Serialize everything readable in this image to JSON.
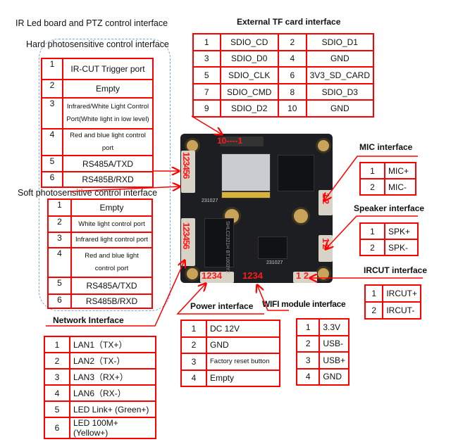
{
  "titles": {
    "ir_led": "IR Led board and PTZ control interface",
    "hard": "Hard photosensitive control interface",
    "soft": "Soft photosensitive control interface",
    "network": "Network Interface",
    "tf": "External TF card interface",
    "mic": "MIC interface",
    "speaker": "Speaker interface",
    "ircut": "IRCUT interface",
    "power": "Power interface",
    "wifi": "WIFI module interface"
  },
  "tables": {
    "hard": [
      [
        "1",
        "IR-CUT Trigger port"
      ],
      [
        "2",
        "Empty"
      ],
      [
        "3",
        "Infrared/White Light Control Port(White light in low level)"
      ],
      [
        "4",
        "Red and blue light control port"
      ],
      [
        "5",
        "RS485A/TXD"
      ],
      [
        "6",
        "RS485B/RXD"
      ]
    ],
    "soft": [
      [
        "1",
        "Empty"
      ],
      [
        "2",
        "White light control port"
      ],
      [
        "3",
        "Infrared light control port"
      ],
      [
        "4",
        "Red and blue light control port"
      ],
      [
        "5",
        "RS485A/TXD"
      ],
      [
        "6",
        "RS485B/RXD"
      ]
    ],
    "network": [
      [
        "1",
        "LAN1（TX+）"
      ],
      [
        "2",
        "LAN2（TX-）"
      ],
      [
        "3",
        "LAN3（RX+）"
      ],
      [
        "4",
        "LAN6（RX-）"
      ],
      [
        "5",
        "LED Link+ (Green+)"
      ],
      [
        "6",
        "LED 100M+(Yellow+)"
      ]
    ],
    "tf": [
      [
        "1",
        "SDIO_CD",
        "2",
        "SDIO_D1"
      ],
      [
        "3",
        "SDIO_D0",
        "4",
        "GND"
      ],
      [
        "5",
        "SDIO_CLK",
        "6",
        "3V3_SD_CARD"
      ],
      [
        "7",
        "SDIO_CMD",
        "8",
        "SDIO_D3"
      ],
      [
        "9",
        "SDIO_D2",
        "10",
        "GND"
      ]
    ],
    "mic": [
      [
        "1",
        "MIC+"
      ],
      [
        "2",
        "MIC-"
      ]
    ],
    "speaker": [
      [
        "1",
        "SPK+"
      ],
      [
        "2",
        "SPK-"
      ]
    ],
    "ircut": [
      [
        "1",
        "IRCUT+"
      ],
      [
        "2",
        "IRCUT-"
      ]
    ],
    "power": [
      [
        "1",
        "DC 12V"
      ],
      [
        "2",
        "GND"
      ],
      [
        "3",
        "Factory reset button"
      ],
      [
        "4",
        "Empty"
      ]
    ],
    "wifi": [
      [
        "1",
        "3.3V"
      ],
      [
        "2",
        "USB-"
      ],
      [
        "3",
        "USB+"
      ],
      [
        "4",
        "GND"
      ]
    ]
  },
  "board_labels": {
    "tf_pins": "10----1",
    "hard_pins": "123456",
    "soft_pins": "123456",
    "mic_pins": "1 2",
    "spk_pins": "1 2",
    "power_pins": "1234",
    "wifi_pins": "1234",
    "ircut_pins": "1 2",
    "date1": "231027",
    "date2": "231027",
    "chip_text": "SHLC2321H BT1603Y2"
  },
  "colors": {
    "accent": "#ff0000",
    "dashed_box": "#7aa6e0",
    "pcb": "#1c1e22"
  }
}
